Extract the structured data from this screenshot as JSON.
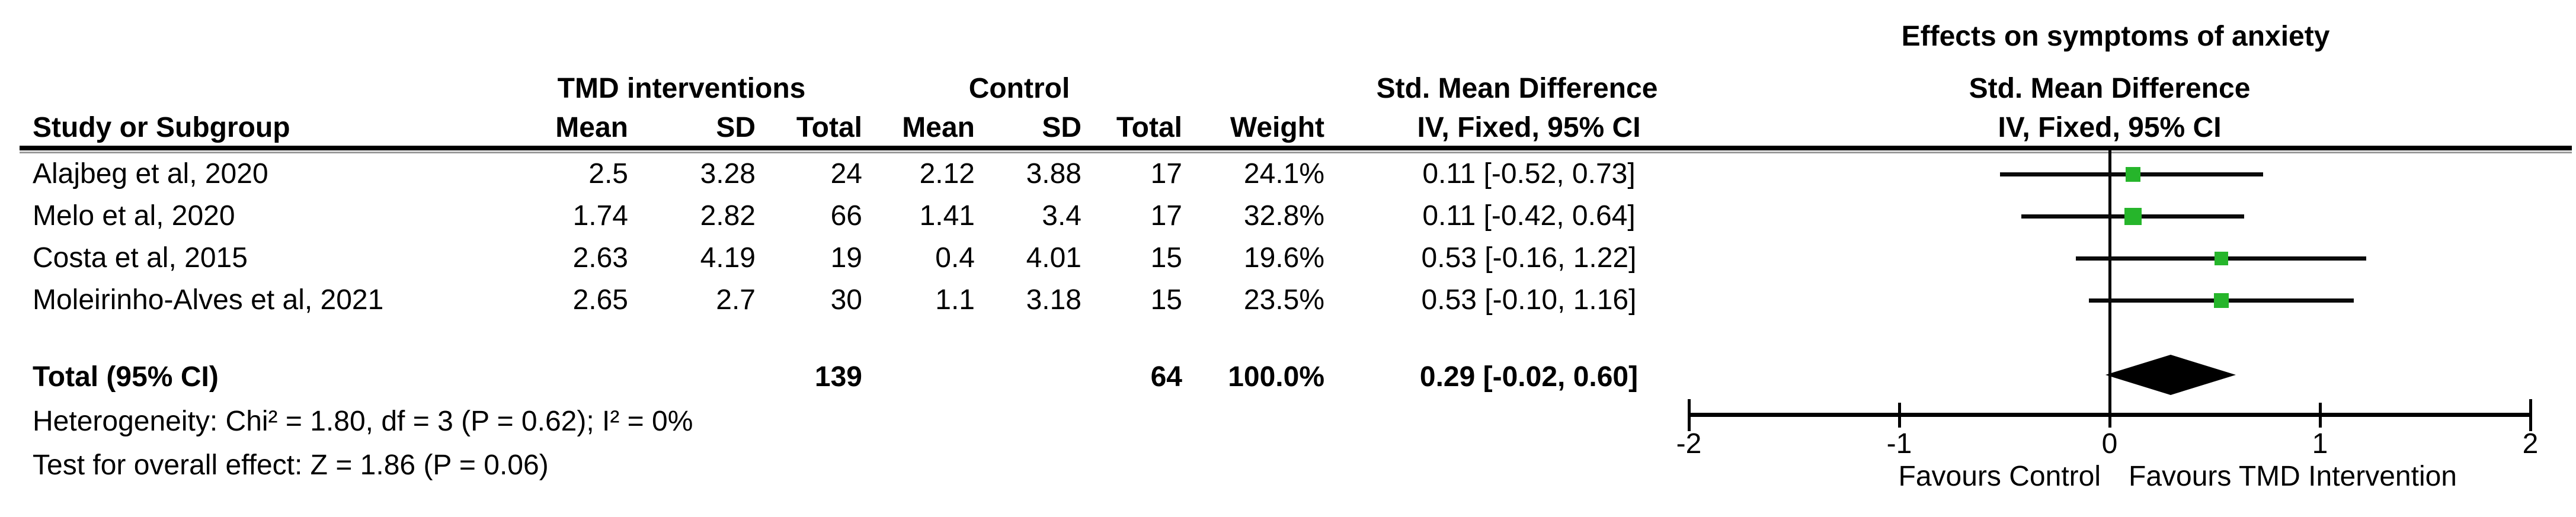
{
  "chart_data": {
    "type": "forest",
    "title": "Effects on symptoms of anxiety",
    "groups": {
      "treatment": "TMD interventions",
      "control": "Control",
      "effect": "Std. Mean Difference"
    },
    "plot_headers": {
      "line1": "Std. Mean Difference",
      "line2": "IV, Fixed, 95% CI"
    },
    "columns": {
      "study": "Study or Subgroup",
      "mean": "Mean",
      "sd": "SD",
      "total": "Total",
      "weight": "Weight",
      "ci": "IV, Fixed, 95% CI"
    },
    "studies": [
      {
        "name": "Alajbeg et al, 2020",
        "t_mean": "2.5",
        "t_sd": "3.28",
        "t_total": "24",
        "c_mean": "2.12",
        "c_sd": "3.88",
        "c_total": "17",
        "weight": "24.1%",
        "ci_text": "0.11 [-0.52, 0.73]",
        "est": 0.11,
        "lo": -0.52,
        "hi": 0.73,
        "weight_pct": 24.1
      },
      {
        "name": "Melo et al, 2020",
        "t_mean": "1.74",
        "t_sd": "2.82",
        "t_total": "66",
        "c_mean": "1.41",
        "c_sd": "3.4",
        "c_total": "17",
        "weight": "32.8%",
        "ci_text": "0.11 [-0.42, 0.64]",
        "est": 0.11,
        "lo": -0.42,
        "hi": 0.64,
        "weight_pct": 32.8
      },
      {
        "name": "Costa et al, 2015",
        "t_mean": "2.63",
        "t_sd": "4.19",
        "t_total": "19",
        "c_mean": "0.4",
        "c_sd": "4.01",
        "c_total": "15",
        "weight": "19.6%",
        "ci_text": "0.53 [-0.16, 1.22]",
        "est": 0.53,
        "lo": -0.16,
        "hi": 1.22,
        "weight_pct": 19.6
      },
      {
        "name": "Moleirinho-Alves et al, 2021",
        "t_mean": "2.65",
        "t_sd": "2.7",
        "t_total": "30",
        "c_mean": "1.1",
        "c_sd": "3.18",
        "c_total": "15",
        "weight": "23.5%",
        "ci_text": "0.53 [-0.10, 1.16]",
        "est": 0.53,
        "lo": -0.1,
        "hi": 1.16,
        "weight_pct": 23.5
      }
    ],
    "total": {
      "label": "Total (95% CI)",
      "t_total": "139",
      "c_total": "64",
      "weight": "100.0%",
      "ci_text": "0.29 [-0.02, 0.60]",
      "est": 0.29,
      "lo": -0.02,
      "hi": 0.6
    },
    "footnotes": {
      "heterogeneity": "Heterogeneity: Chi² = 1.80, df = 3 (P = 0.62); I² = 0%",
      "overall_effect": "Test for overall effect: Z = 1.86 (P = 0.06)"
    },
    "axis": {
      "min": -2,
      "max": 2,
      "ticks": [
        {
          "label": "-2",
          "value": -2
        },
        {
          "label": "-1",
          "value": -1
        },
        {
          "label": "0",
          "value": 0
        },
        {
          "label": "1",
          "value": 1
        },
        {
          "label": "2",
          "value": 2
        }
      ],
      "favours_left": "Favours Control",
      "favours_right": "Favours TMD Intervention"
    },
    "colors": {
      "marker": "#26b52b",
      "diamond": "#000000",
      "line": "#000000"
    }
  }
}
